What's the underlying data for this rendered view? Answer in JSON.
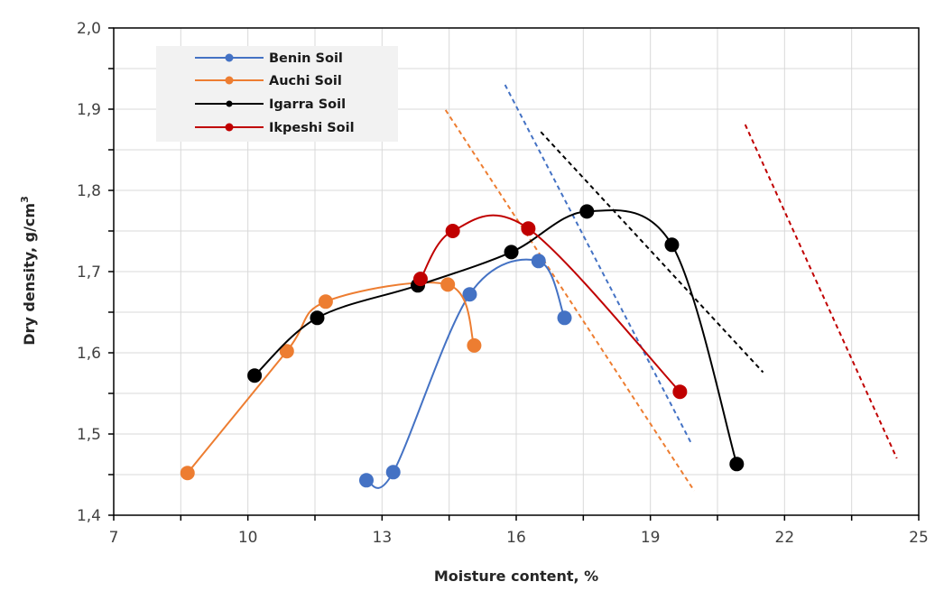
{
  "chart_data": {
    "type": "line",
    "title": "",
    "xlabel": "Moisture content, %",
    "ylabel": "Dry density, g/cm",
    "ylabel_superscript": "3",
    "xlim": [
      7,
      25
    ],
    "ylim": [
      1.4,
      2.0
    ],
    "x_ticks": [
      "7",
      "10",
      "13",
      "16",
      "19",
      "22",
      "25"
    ],
    "x_tick_values": [
      7,
      10,
      13,
      16,
      19,
      22,
      25
    ],
    "x_minor_step": 1.5,
    "y_ticks": [
      "1,4",
      "1,5",
      "1,6",
      "1,7",
      "1,8",
      "1,9",
      "2,0"
    ],
    "y_tick_values": [
      1.4,
      1.5,
      1.6,
      1.7,
      1.8,
      1.9,
      2.0
    ],
    "y_minor_step": 0.05,
    "grid": true,
    "legend_position": "upper left (inside)",
    "series": [
      {
        "name": "Benin Soil",
        "color": "#4472C4",
        "marker": "circle",
        "smooth": true,
        "x": [
          12.65,
          13.25,
          14.96,
          16.5,
          17.08
        ],
        "y": [
          1.443,
          1.453,
          1.672,
          1.713,
          1.643
        ]
      },
      {
        "name": "Auchi Soil",
        "color": "#ED7D31",
        "marker": "circle",
        "smooth": true,
        "x": [
          8.65,
          10.87,
          11.74,
          14.47,
          15.06
        ],
        "y": [
          1.452,
          1.602,
          1.663,
          1.684,
          1.609
        ]
      },
      {
        "name": "Igarra Soil",
        "color": "#000000",
        "marker": "circle",
        "smooth": true,
        "x": [
          10.15,
          11.55,
          13.8,
          15.89,
          17.58,
          19.48,
          20.93
        ],
        "y": [
          1.572,
          1.643,
          1.683,
          1.724,
          1.774,
          1.733,
          1.463
        ]
      },
      {
        "name": "Ikpeshi Soil",
        "color": "#C00000",
        "marker": "circle",
        "smooth": true,
        "x": [
          13.86,
          14.58,
          16.27,
          19.66
        ],
        "y": [
          1.691,
          1.75,
          1.753,
          1.552
        ]
      }
    ],
    "zero_air_voids_lines": [
      {
        "series": "Auchi Soil",
        "color": "#ED7D31",
        "style": "dashed",
        "x": [
          14.42,
          19.98
        ],
        "y": [
          1.899,
          1.43
        ]
      },
      {
        "series": "Benin Soil",
        "color": "#4472C4",
        "style": "dashed",
        "x": [
          15.75,
          19.9
        ],
        "y": [
          1.93,
          1.49
        ]
      },
      {
        "series": "Igarra Soil",
        "color": "#000000",
        "style": "dashed",
        "x": [
          16.55,
          21.52
        ],
        "y": [
          1.872,
          1.576
        ]
      },
      {
        "series": "Ikpeshi Soil",
        "color": "#C00000",
        "style": "dashed",
        "x": [
          21.12,
          24.51
        ],
        "y": [
          1.881,
          1.47
        ]
      }
    ]
  },
  "legend": {
    "items": [
      {
        "label": "Benin Soil",
        "color": "#4472C4"
      },
      {
        "label": "Auchi Soil",
        "color": "#ED7D31"
      },
      {
        "label": "Igarra Soil",
        "color": "#000000"
      },
      {
        "label": "Ikpeshi Soil",
        "color": "#C00000"
      }
    ]
  },
  "axes": {
    "x_title": "Moisture content, %",
    "y_title": "Dry density, g/cm",
    "y_title_sup": "3"
  }
}
